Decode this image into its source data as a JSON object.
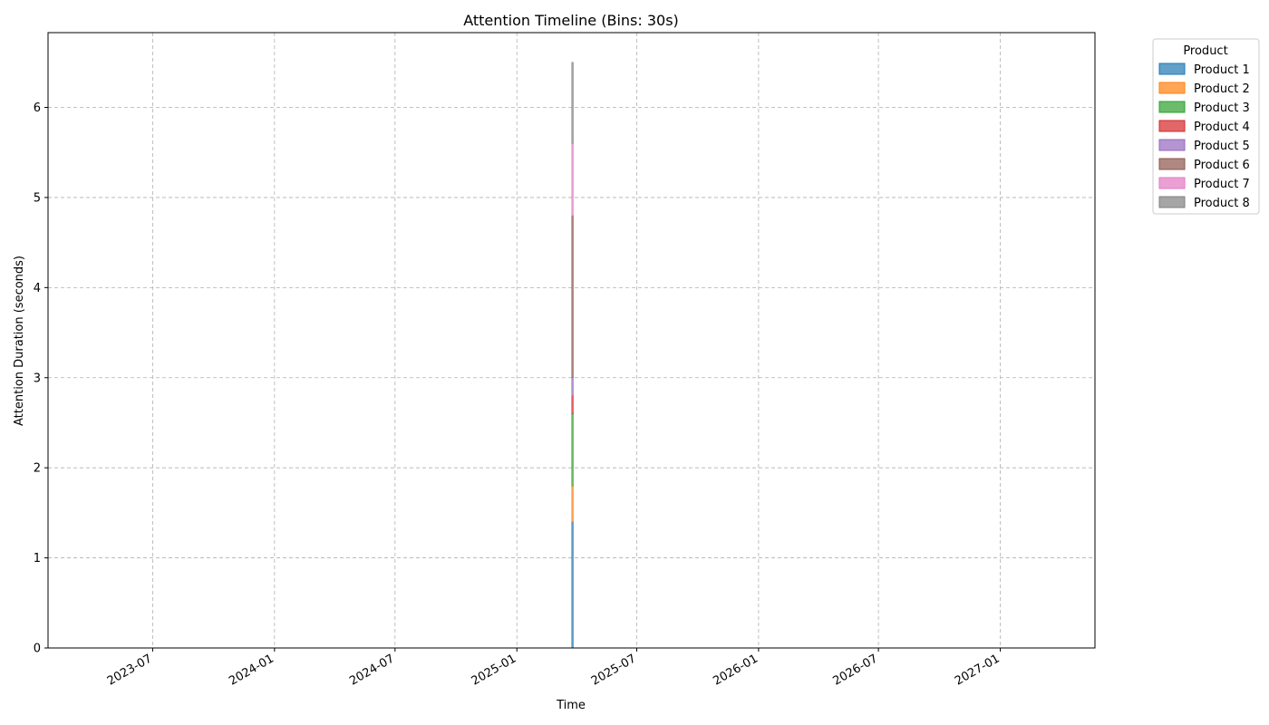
{
  "chart_data": {
    "type": "area",
    "title": "Attention Timeline (Bins: 30s)",
    "xlabel": "Time",
    "ylabel": "Attention Duration (seconds)",
    "x_ticks": [
      "2023-07",
      "2024-01",
      "2024-07",
      "2025-01",
      "2025-07",
      "2026-01",
      "2026-07",
      "2027-01"
    ],
    "y_ticks": [
      "0",
      "1",
      "2",
      "3",
      "4",
      "5",
      "6"
    ],
    "xlim": [
      "2023-01-24",
      "2027-05-24"
    ],
    "ylim": [
      0,
      6.83
    ],
    "grid": true,
    "stacked": true,
    "legend": {
      "title": "Product",
      "placement": "outside-top-right"
    },
    "x": [
      "2025-03-26"
    ],
    "series": [
      {
        "name": "Product 1",
        "color": "#1f77b4",
        "values": [
          1.4
        ]
      },
      {
        "name": "Product 2",
        "color": "#ff7f0e",
        "values": [
          0.4
        ]
      },
      {
        "name": "Product 3",
        "color": "#2ca02c",
        "values": [
          0.8
        ]
      },
      {
        "name": "Product 4",
        "color": "#d62728",
        "values": [
          0.2
        ]
      },
      {
        "name": "Product 5",
        "color": "#9467bd",
        "values": [
          0.2
        ]
      },
      {
        "name": "Product 6",
        "color": "#8c564b",
        "values": [
          1.8
        ]
      },
      {
        "name": "Product 7",
        "color": "#e377c2",
        "values": [
          0.8
        ]
      },
      {
        "name": "Product 8",
        "color": "#7f7f7f",
        "values": [
          0.9
        ]
      }
    ]
  }
}
